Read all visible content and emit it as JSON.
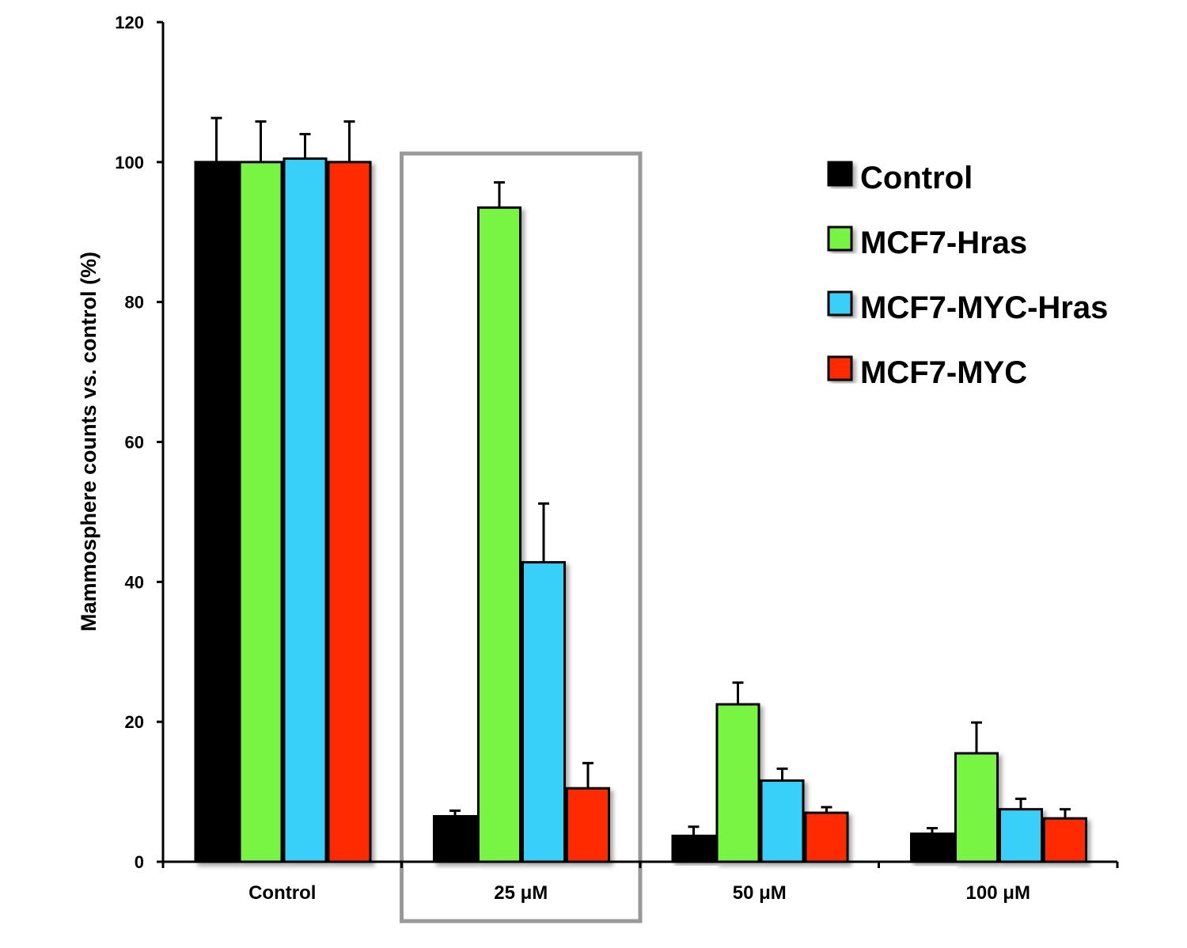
{
  "chart_data": {
    "type": "bar",
    "title": "",
    "xlabel": "",
    "ylabel": "Mammosphere counts vs. control  (%)",
    "ylim": [
      0,
      120
    ],
    "yticks": [
      "0",
      "20",
      "40",
      "60",
      "80",
      "100",
      "120"
    ],
    "categories": [
      "Control",
      "25 μM",
      "50 μM",
      "100 μM"
    ],
    "highlighted_category": "25 μM",
    "grid": false,
    "legend_position": "top-right",
    "series": [
      {
        "name": "Control",
        "color": "#000000",
        "values": [
          100,
          6.5,
          3.7,
          4.0
        ],
        "errors": [
          6.3,
          0.8,
          1.3,
          0.8
        ]
      },
      {
        "name": "MCF7-Hras",
        "color": "#77f542",
        "values": [
          100,
          93.5,
          22.5,
          15.5
        ],
        "errors": [
          5.8,
          3.6,
          3.1,
          4.4
        ]
      },
      {
        "name": "MCF7-MYC-Hras",
        "color": "#38d0f8",
        "values": [
          100.5,
          42.8,
          11.6,
          7.5
        ],
        "errors": [
          3.5,
          8.4,
          1.7,
          1.5
        ]
      },
      {
        "name": "MCF7-MYC",
        "color": "#ff2a00",
        "values": [
          100,
          10.5,
          7.0,
          6.2
        ],
        "errors": [
          5.8,
          3.6,
          0.8,
          1.3
        ]
      }
    ]
  }
}
